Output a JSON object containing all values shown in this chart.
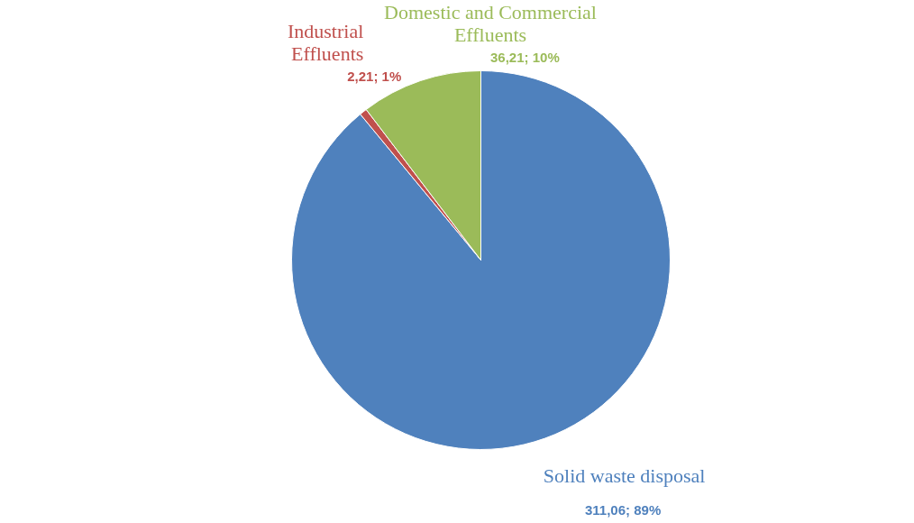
{
  "chart_data": {
    "type": "pie",
    "categories": [
      "Solid waste disposal",
      "Industrial Effluents",
      "Domestic and Commercial Effluents"
    ],
    "values": [
      311.06,
      2.21,
      36.21
    ],
    "colors": [
      "#4f81bd",
      "#c0504d",
      "#9bbb59"
    ],
    "value_labels": [
      "311,06; 89%",
      "2,21; 1%",
      "36,21; 10%"
    ]
  }
}
